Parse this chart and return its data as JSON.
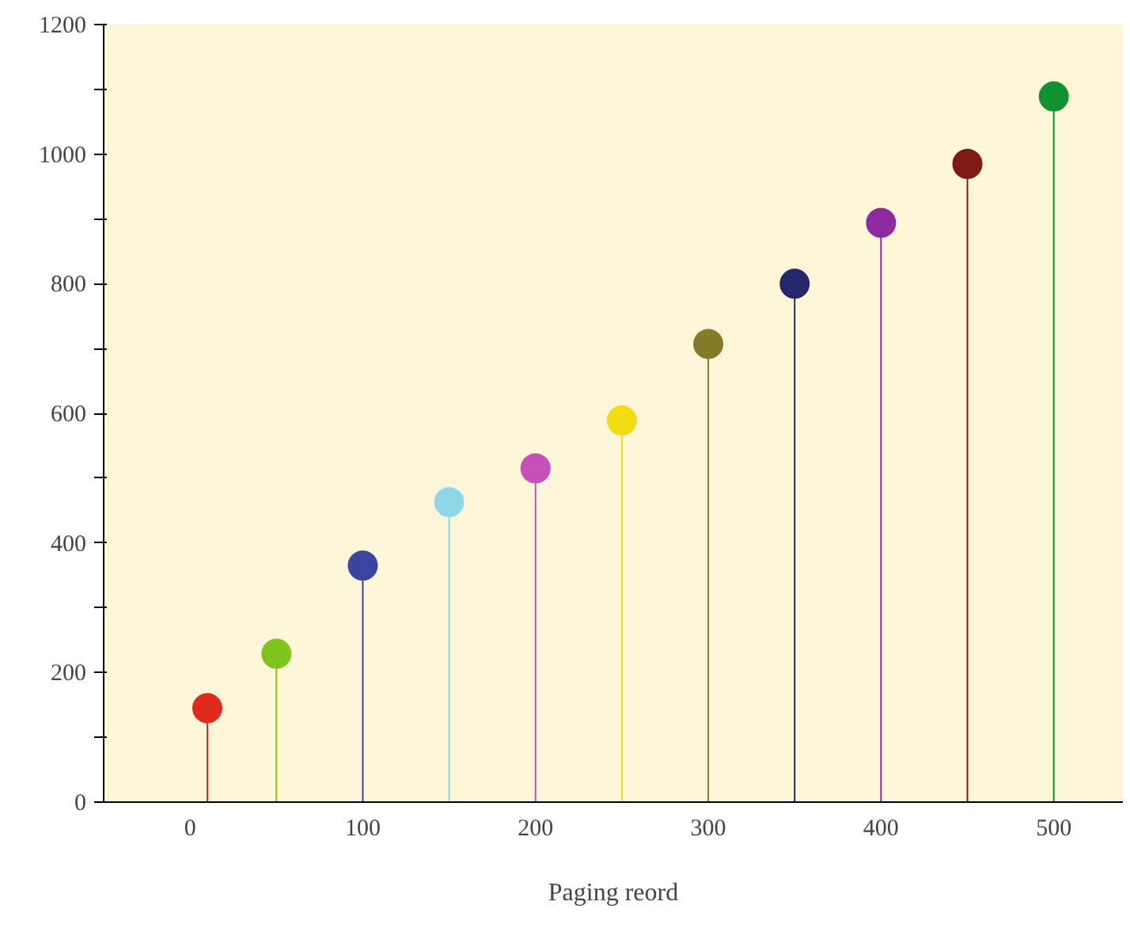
{
  "chart_data": {
    "type": "lollipop",
    "xlabel": "Paging reord",
    "x": [
      10,
      50,
      100,
      150,
      200,
      250,
      300,
      350,
      400,
      450,
      500
    ],
    "values": [
      145,
      229,
      365,
      463,
      515,
      589,
      707,
      800,
      894,
      985,
      1089
    ],
    "colors": [
      "#e02a1e",
      "#7ec41a",
      "#3a45a0",
      "#8fd8ea",
      "#c550b8",
      "#f2dc14",
      "#857a2a",
      "#27276e",
      "#8f2aa0",
      "#7d1a16",
      "#139030"
    ],
    "xlim": [
      -50,
      540
    ],
    "ylim": [
      0,
      1200
    ],
    "xticks": [
      0,
      100,
      200,
      300,
      400,
      500
    ],
    "yticks": [
      0,
      {
        "value": 100,
        "label": null
      },
      200,
      {
        "value": 300,
        "label": null
      },
      400,
      {
        "value": 500,
        "label": null
      },
      600,
      {
        "value": 700,
        "label": null
      },
      800,
      {
        "value": 900,
        "label": null
      },
      1000,
      {
        "value": 1100,
        "label": null
      },
      1200
    ],
    "marker": "circle",
    "grid": false
  }
}
